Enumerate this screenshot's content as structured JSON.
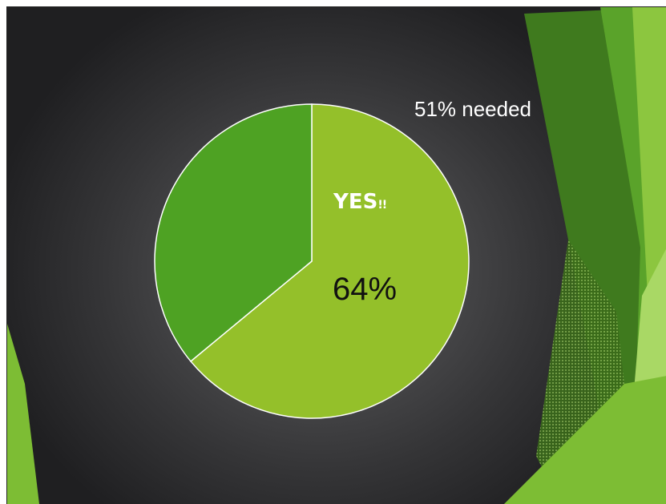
{
  "slide": {
    "annotation": "51% needed",
    "yes_label": "YES",
    "yes_suffix": "!!",
    "value_label": "64%"
  },
  "colors": {
    "yes": "#94c02a",
    "no": "#4ea223",
    "outline": "#ffffff",
    "background": "#3d3d3f"
  },
  "chart_data": {
    "type": "pie",
    "title": "",
    "labels": [
      "YES!!",
      ""
    ],
    "values": [
      64,
      36
    ],
    "annotations": [
      "51% needed"
    ],
    "legend": false
  }
}
